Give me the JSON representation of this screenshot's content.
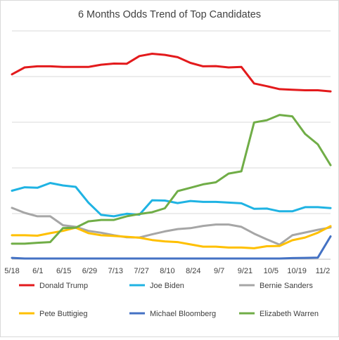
{
  "chart_data": {
    "type": "line",
    "title": "6 Months Odds Trend of Top Candidates",
    "xlabel": "",
    "ylabel": "",
    "ylim": [
      0,
      100
    ],
    "grid": true,
    "legend_position": "bottom",
    "x_tick_labels": [
      "5/18",
      "6/1",
      "6/15",
      "6/29",
      "7/13",
      "7/27",
      "8/10",
      "8/24",
      "9/7",
      "9/21",
      "10/5",
      "10/19",
      "11/2"
    ],
    "series": [
      {
        "name": "Donald Trump",
        "color": "#e31a1c",
        "values": [
          81,
          84,
          84.5,
          84.5,
          84.2,
          84.2,
          84.2,
          85.2,
          85.7,
          85.6,
          89,
          90,
          89.5,
          88.5,
          86,
          84.5,
          84.6,
          84,
          84.2,
          77,
          75.8,
          74.5,
          74.2,
          74,
          74,
          73.5
        ]
      },
      {
        "name": "Joe Biden",
        "color": "#1fb3e3",
        "values": [
          30,
          31.5,
          31.3,
          33.4,
          32.3,
          31.7,
          24.8,
          19.4,
          18.8,
          19.9,
          19.5,
          25.8,
          25.7,
          24.6,
          25.5,
          25.1,
          25.1,
          24.8,
          24.5,
          22.1,
          22.2,
          21,
          21,
          22.8,
          22.8,
          22.4
        ]
      },
      {
        "name": "Bernie Sanders",
        "color": "#a6a6a6",
        "values": [
          22.5,
          20.3,
          18.8,
          18.8,
          14.9,
          14.2,
          12.4,
          11.6,
          10.5,
          9.6,
          9.5,
          10.9,
          12.2,
          13.2,
          13.6,
          14.6,
          15.2,
          15.2,
          14.2,
          11.2,
          8.7,
          6.4,
          10.5,
          11.7,
          12.9,
          13.9
        ]
      },
      {
        "name": "Pete Buttigieg",
        "color": "#ffc000",
        "values": [
          10.5,
          10.5,
          10.3,
          11.4,
          12.4,
          13.8,
          11.4,
          10.5,
          10.2,
          9.8,
          9.4,
          8.4,
          7.8,
          7.5,
          6.5,
          5.5,
          5.5,
          5.1,
          5.1,
          4.8,
          5.7,
          5.8,
          8.3,
          9.5,
          11.6,
          14.5
        ]
      },
      {
        "name": "Michael Bloomberg",
        "color": "#4472c4",
        "values": [
          0.6,
          0.3,
          0.3,
          0.3,
          0.3,
          0.3,
          0.3,
          0.3,
          0.3,
          0.3,
          0.3,
          0.3,
          0.3,
          0.3,
          0.3,
          0.3,
          0.3,
          0.3,
          0.3,
          0.3,
          0.3,
          0.3,
          0.5,
          0.6,
          0.7,
          10
        ]
      },
      {
        "name": "Elizabeth Warren",
        "color": "#70ad47",
        "values": [
          6.8,
          6.8,
          7.2,
          7.5,
          13.6,
          13.8,
          16.6,
          17.2,
          17.2,
          18.8,
          19.8,
          20.6,
          22.3,
          29.8,
          31.3,
          32.8,
          33.7,
          37.5,
          38.5,
          59.9,
          60.9,
          63.2,
          62.6,
          54.9,
          50.3,
          41.2
        ]
      }
    ]
  }
}
